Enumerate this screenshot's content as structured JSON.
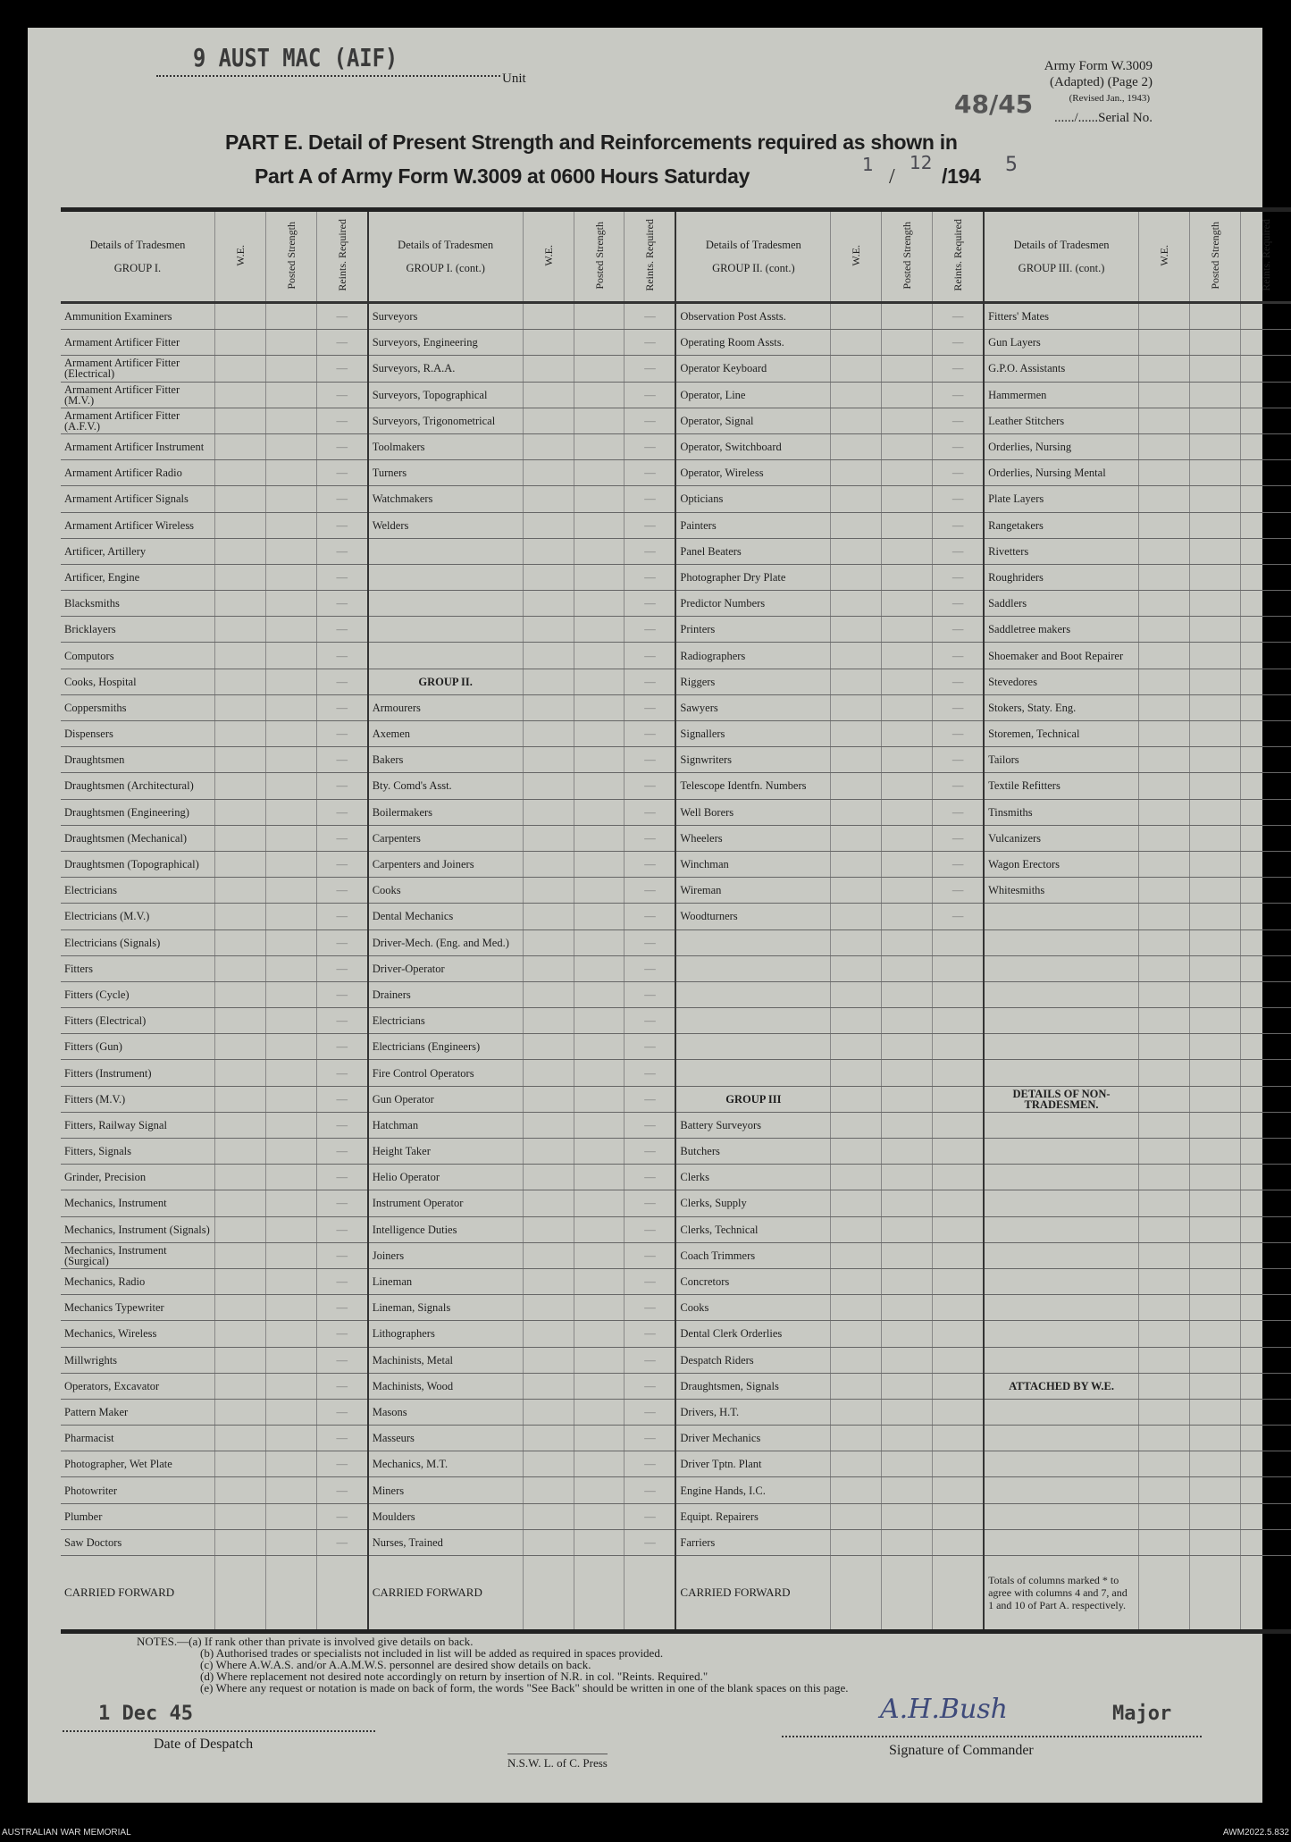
{
  "header": {
    "unit_typed": "9 AUST MAC (AIF)",
    "unit_label": "Unit",
    "form_name": "Army Form W.3009",
    "form_adapted": "(Adapted) (Page 2)",
    "form_revised": "(Revised Jan., 1943)",
    "serial_handwritten": "48/45",
    "serial_label": "....../......Serial No.",
    "title_line1": "PART E. Detail of Present Strength and Reinforcements required as shown in",
    "title_line2": "Part A of Army Form W.3009 at 0600 Hours Saturday",
    "date_day": "1",
    "date_month": "12",
    "date_year_prefix": "/194",
    "date_year_digit": "5"
  },
  "table": {
    "col_details": "Details of Tradesmen",
    "col_we": "W.E.",
    "col_posted": "Posted Strength",
    "col_reints": "Reints. Required",
    "group_headers": [
      "GROUP I.",
      "GROUP I. (cont.)",
      "GROUP II. (cont.)",
      "GROUP III. (cont.)"
    ],
    "columns": [
      [
        "Ammunition Examiners",
        "Armament Artificer Fitter",
        "Armament Artificer Fitter (Electrical)",
        "Armament Artificer Fitter (M.V.)",
        "Armament Artificer Fitter (A.F.V.)",
        "Armament Artificer Instrument",
        "Armament Artificer Radio",
        "Armament Artificer Signals",
        "Armament Artificer Wireless",
        "Artificer, Artillery",
        "Artificer, Engine",
        "Blacksmiths",
        "Bricklayers",
        "Computors",
        "Cooks, Hospital",
        "Coppersmiths",
        "Dispensers",
        "Draughtsmen",
        "Draughtsmen (Architectural)",
        "Draughtsmen (Engineering)",
        "Draughtsmen (Mechanical)",
        "Draughtsmen (Topographical)",
        "Electricians",
        "Electricians (M.V.)",
        "Electricians (Signals)",
        "Fitters",
        "Fitters (Cycle)",
        "Fitters (Electrical)",
        "Fitters (Gun)",
        "Fitters (Instrument)",
        "Fitters (M.V.)",
        "Fitters, Railway Signal",
        "Fitters, Signals",
        "Grinder, Precision",
        "Mechanics, Instrument",
        "Mechanics, Instrument (Signals)",
        "Mechanics, Instrument (Surgical)",
        "Mechanics, Radio",
        "Mechanics Typewriter",
        "Mechanics, Wireless",
        "Millwrights",
        "Operators, Excavator",
        "Pattern Maker",
        "Pharmacist",
        "Photographer, Wet Plate",
        "Photowriter",
        "Plumber",
        "Saw Doctors"
      ],
      [
        "Surveyors",
        "Surveyors, Engineering",
        "Surveyors, R.A.A.",
        "Surveyors, Topographical",
        "Surveyors, Trigonometrical",
        "Toolmakers",
        "Turners",
        "Watchmakers",
        "Welders",
        "",
        "",
        "",
        "",
        "",
        "#GROUP II.",
        "Armourers",
        "Axemen",
        "Bakers",
        "Bty. Comd's Asst.",
        "Boilermakers",
        "Carpenters",
        "Carpenters and Joiners",
        "Cooks",
        "Dental Mechanics",
        "Driver-Mech. (Eng. and Med.)",
        "Driver-Operator",
        "Drainers",
        "Electricians",
        "Electricians (Engineers)",
        "Fire Control Operators",
        "Gun Operator",
        "Hatchman",
        "Height Taker",
        "Helio Operator",
        "Instrument Operator",
        "Intelligence Duties",
        "Joiners",
        "Lineman",
        "Lineman, Signals",
        "Lithographers",
        "Machinists, Metal",
        "Machinists, Wood",
        "Masons",
        "Masseurs",
        "Mechanics, M.T.",
        "Miners",
        "Moulders",
        "Nurses, Trained"
      ],
      [
        "Observation Post Assts.",
        "Operating Room Assts.",
        "Operator Keyboard",
        "Operator, Line",
        "Operator, Signal",
        "Operator, Switchboard",
        "Operator, Wireless",
        "Opticians",
        "Painters",
        "Panel Beaters",
        "Photographer Dry Plate",
        "Predictor Numbers",
        "Printers",
        "Radiographers",
        "Riggers",
        "Sawyers",
        "Signallers",
        "Signwriters",
        "Telescope Identfn. Numbers",
        "Well Borers",
        "Wheelers",
        "Winchman",
        "Wireman",
        "Woodturners",
        "",
        "",
        "",
        "",
        "",
        "",
        "#GROUP III",
        "Battery Surveyors",
        "Butchers",
        "Clerks",
        "Clerks, Supply",
        "Clerks, Technical",
        "Coach Trimmers",
        "Concretors",
        "Cooks",
        "Dental Clerk Orderlies",
        "Despatch Riders",
        "Draughtsmen, Signals",
        "Drivers, H.T.",
        "Driver Mechanics",
        "Driver Tptn. Plant",
        "Engine Hands, I.C.",
        "Equipt. Repairers",
        "Farriers"
      ],
      [
        "Fitters' Mates",
        "Gun Layers",
        "G.P.O. Assistants",
        "Hammermen",
        "Leather Stitchers",
        "Orderlies, Nursing",
        "Orderlies, Nursing Mental",
        "Plate Layers",
        "Rangetakers",
        "Rivetters",
        "Roughriders",
        "Saddlers",
        "Saddletree makers",
        "Shoemaker and Boot Repairer",
        "Stevedores",
        "Stokers, Staty. Eng.",
        "Storemen, Technical",
        "Tailors",
        "Textile Refitters",
        "Tinsmiths",
        "Vulcanizers",
        "Wagon Erectors",
        "Whitesmiths",
        "",
        "",
        "",
        "",
        "",
        "",
        "",
        "#DETAILS OF NON-TRADESMEN.",
        "",
        "",
        "",
        "",
        "",
        "",
        "",
        "",
        "",
        "",
        "#ATTACHED BY W.E.",
        "",
        "",
        "",
        "",
        "",
        ""
      ]
    ],
    "reints_dash": "—",
    "carried_forward": "CARRIED FORWARD",
    "totals_note": "Totals of columns marked * to agree with columns 4 and 7, and 1 and 10 of Part A. respectively."
  },
  "notes": {
    "a": "NOTES.—(a) If rank other than private is involved give details on back.",
    "b": "(b) Authorised trades or specialists not included in list will be added as required in spaces provided.",
    "c": "(c) Where A.W.A.S. and/or A.A.M.W.S. personnel are desired show details on back.",
    "d": "(d) Where replacement not desired note accordingly on return by insertion of N.R. in col. \"Reints. Required.\"",
    "e": "(e) Where any request or notation is made on back of form, the words \"See Back\" should be written in one of the blank spaces on this page."
  },
  "signoff": {
    "despatch_date_typed": "1 Dec 45",
    "despatch_label": "Date of Despatch",
    "press": "N.S.W. L. of C. Press",
    "signature": "A.H.Bush",
    "rank_typed": "Major",
    "signature_label": "Signature of Commander"
  },
  "archive": {
    "left": "AUSTRALIAN WAR MEMORIAL",
    "right": "AWM2022.5.832"
  }
}
